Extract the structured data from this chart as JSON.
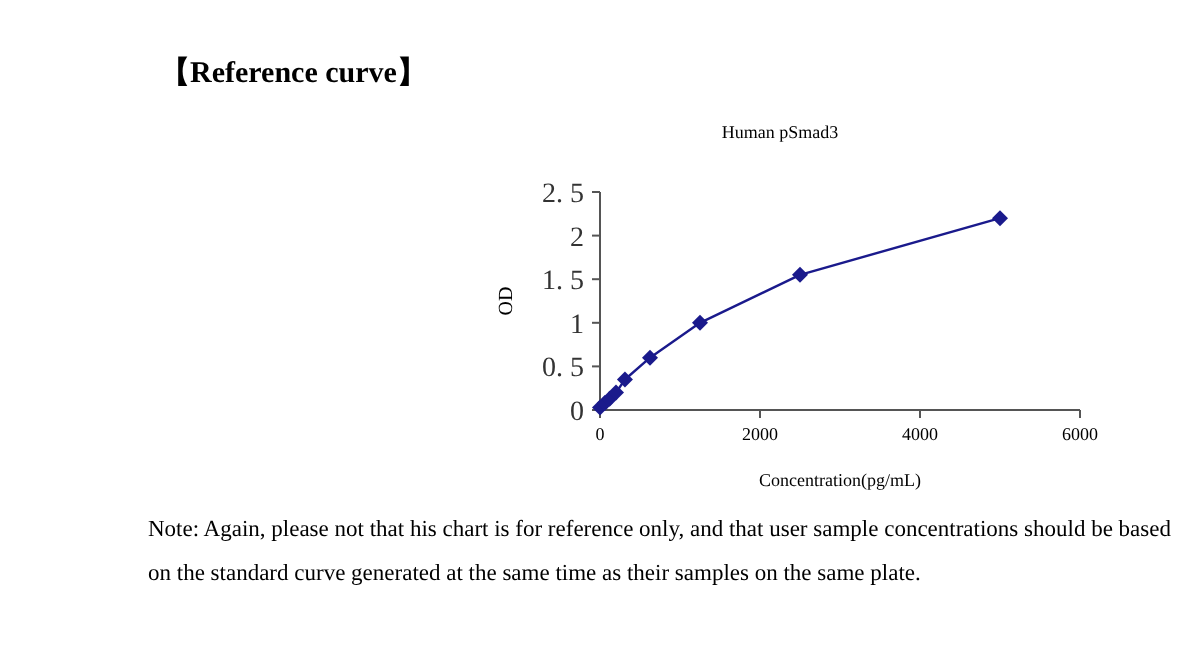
{
  "chart_data": {
    "type": "line",
    "title": "Human pSmad3",
    "subtitle": "【Reference curve】",
    "xlabel": "Concentration(pg/mL)",
    "ylabel": "OD",
    "x": [
      0,
      60,
      120,
      200,
      312,
      625,
      1250,
      2500,
      5000
    ],
    "series": [
      {
        "color": "#1a1a8c",
        "values": [
          0.03,
          0.08,
          0.13,
          0.2,
          0.35,
          0.6,
          1.0,
          1.55,
          2.2
        ]
      }
    ],
    "xlim": [
      0,
      6000
    ],
    "xticks": [
      0,
      2000,
      4000,
      6000
    ],
    "ylim": [
      0,
      2.5
    ],
    "yticks": [
      0,
      {
        "value": 0.5,
        "label": "0. 5"
      },
      1,
      {
        "value": 1.5,
        "label": "1. 5"
      },
      2,
      {
        "value": 2.5,
        "label": "2. 5"
      }
    ],
    "marker": "diamond",
    "annotations": [
      "Note: Again, please not that his chart is for reference only, and that user sample concentrations should be based on the standard curve generated at the same time as their samples on the same plate."
    ]
  }
}
